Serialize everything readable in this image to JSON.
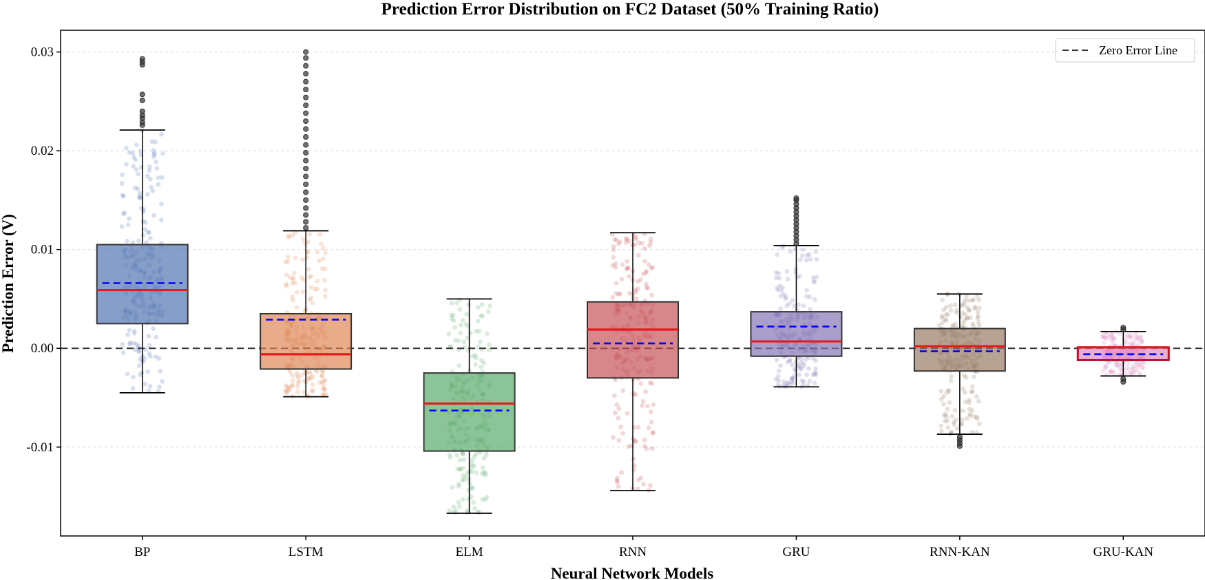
{
  "chart_data": {
    "type": "box",
    "title": "Prediction Error Distribution on FC2 Dataset (50% Training Ratio)",
    "xlabel": "Neural Network Models",
    "ylabel": "Prediction Error (V)",
    "ylim": [
      -0.019,
      0.0322
    ],
    "yticks": [
      -0.01,
      0.0,
      0.01,
      0.02,
      0.03
    ],
    "ytick_labels": [
      "-0.01",
      "0.00",
      "0.01",
      "0.02",
      "0.03"
    ],
    "grid": "horizontal dashed",
    "legend": {
      "position": "top-right",
      "entries": [
        "Zero Error Line"
      ]
    },
    "reference_line": {
      "y": 0,
      "style": "dashed",
      "color": "#333333",
      "label": "Zero Error Line"
    },
    "median_color": "#e41a1c",
    "mean_color": "#0000ff",
    "categories": [
      "BP",
      "LSTM",
      "ELM",
      "RNN",
      "GRU",
      "RNN-KAN",
      "GRU-KAN"
    ],
    "boxes": [
      {
        "name": "BP",
        "color": "#4c72b0",
        "q1": 0.0025,
        "median": 0.0059,
        "mean": 0.0066,
        "q3": 0.0105,
        "whisker_low": -0.0045,
        "whisker_high": 0.0221,
        "outliers": [
          0.0226,
          0.0229,
          0.0233,
          0.0236,
          0.024,
          0.0251,
          0.0257,
          0.0287,
          0.029,
          0.0293
        ]
      },
      {
        "name": "LSTM",
        "color": "#dd8452",
        "q1": -0.0021,
        "median": -0.0006,
        "mean": 0.0029,
        "q3": 0.0035,
        "whisker_low": -0.0049,
        "whisker_high": 0.0119,
        "outliers": [
          0.0122,
          0.0128,
          0.0135,
          0.0142,
          0.015,
          0.0158,
          0.0166,
          0.0174,
          0.0182,
          0.019,
          0.0198,
          0.0206,
          0.0214,
          0.0222,
          0.023,
          0.0238,
          0.0246,
          0.0254,
          0.0262,
          0.027,
          0.0278,
          0.0286,
          0.0294,
          0.03
        ]
      },
      {
        "name": "ELM",
        "color": "#55a868",
        "q1": -0.0104,
        "median": -0.0056,
        "mean": -0.0063,
        "q3": -0.0025,
        "whisker_low": -0.0167,
        "whisker_high": 0.005,
        "outliers": []
      },
      {
        "name": "RNN",
        "color": "#c44e52",
        "q1": -0.003,
        "median": 0.0019,
        "mean": 0.0005,
        "q3": 0.0047,
        "whisker_low": -0.0144,
        "whisker_high": 0.0117,
        "outliers": []
      },
      {
        "name": "GRU",
        "color": "#8172b3",
        "q1": -0.0008,
        "median": 0.0007,
        "mean": 0.0022,
        "q3": 0.0037,
        "whisker_low": -0.0039,
        "whisker_high": 0.0104,
        "outliers": [
          0.0106,
          0.011,
          0.0114,
          0.0118,
          0.0122,
          0.0126,
          0.013,
          0.0134,
          0.0138,
          0.0142,
          0.0146,
          0.015,
          0.0152
        ]
      },
      {
        "name": "RNN-KAN",
        "color": "#937860",
        "q1": -0.0023,
        "median": 0.0002,
        "mean": -0.0003,
        "q3": 0.002,
        "whisker_low": -0.0087,
        "whisker_high": 0.0055,
        "outliers": [
          -0.009,
          -0.0093,
          -0.0096,
          -0.0099
        ]
      },
      {
        "name": "GRU-KAN",
        "color": "#da8bc3",
        "q1": -0.0012,
        "median": 0.0001,
        "mean": -0.0006,
        "q3": 0.0001,
        "whisker_low": -0.0028,
        "whisker_high": 0.0017,
        "outliers": [
          0.0019,
          0.0021,
          -0.0031,
          -0.0034
        ]
      }
    ]
  }
}
